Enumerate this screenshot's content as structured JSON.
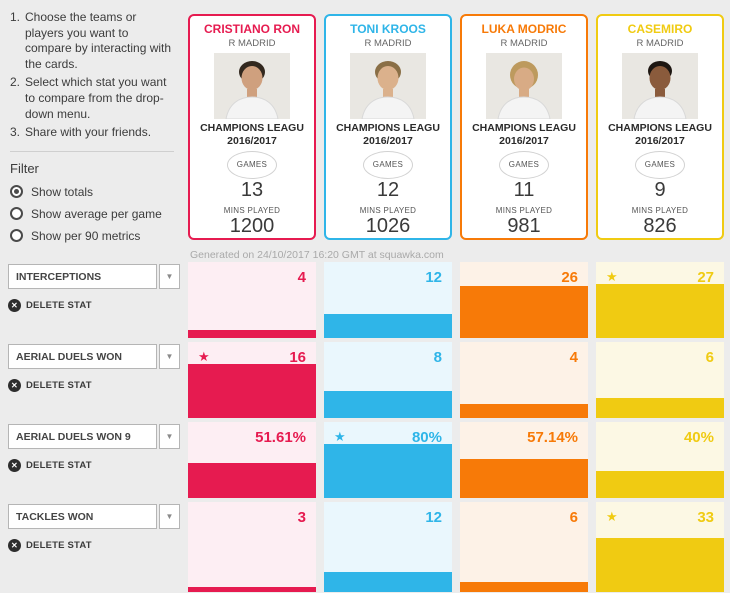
{
  "sidebar": {
    "instructions": [
      {
        "num": "1.",
        "text": "Choose the teams or players you want to compare by interacting with the cards."
      },
      {
        "num": "2.",
        "text": "Select which stat you want to compare from the drop-down menu."
      },
      {
        "num": "3.",
        "text": "Share with your friends."
      }
    ],
    "filter_title": "Filter",
    "filter_options": [
      {
        "label": "Show totals",
        "selected": true
      },
      {
        "label": "Show average per game",
        "selected": false
      },
      {
        "label": "Show per 90 metrics",
        "selected": false
      }
    ],
    "delete_label": "DELETE STAT"
  },
  "players": [
    {
      "name": "CRISTIANO RON",
      "team": "R MADRID",
      "competition": "CHAMPIONS LEAGU",
      "season": "2016/2017",
      "games_label": "GAMES",
      "games": "13",
      "mins_label": "MINS PLAYED",
      "mins": "1200",
      "color": "#e61b50",
      "tint": "#fdeef3",
      "photo": {
        "skin": "#cfa07e",
        "hair": "#32281e"
      }
    },
    {
      "name": "TONI KROOS",
      "team": "R MADRID",
      "competition": "CHAMPIONS LEAGU",
      "season": "2016/2017",
      "games_label": "GAMES",
      "games": "12",
      "mins_label": "MINS PLAYED",
      "mins": "1026",
      "color": "#2fb5e8",
      "tint": "#eaf7fd",
      "photo": {
        "skin": "#dbb18c",
        "hair": "#8a6f46"
      }
    },
    {
      "name": "LUKA MODRIC",
      "team": "R MADRID",
      "competition": "CHAMPIONS LEAGU",
      "season": "2016/2017",
      "games_label": "GAMES",
      "games": "11",
      "mins_label": "MINS PLAYED",
      "mins": "981",
      "color": "#f77a08",
      "tint": "#fdf2e7",
      "photo": {
        "skin": "#d8ab85",
        "hair": "#bd9a5e"
      }
    },
    {
      "name": "CASEMIRO",
      "team": "R MADRID",
      "competition": "CHAMPIONS LEAGU",
      "season": "2016/2017",
      "games_label": "GAMES",
      "games": "9",
      "mins_label": "MINS PLAYED",
      "mins": "826",
      "color": "#f0cb12",
      "tint": "#fcf8e4",
      "photo": {
        "skin": "#8a5b3c",
        "hair": "#1e1712"
      }
    }
  ],
  "generated_note": "Generated on 24/10/2017 16:20 GMT at squawka.com",
  "stats": [
    {
      "label": "INTERCEPTIONS",
      "values": [
        "4",
        "12",
        "26",
        "27"
      ],
      "numeric": [
        4,
        12,
        26,
        27
      ],
      "best": 3
    },
    {
      "label": "AERIAL DUELS WON",
      "values": [
        "16",
        "8",
        "4",
        "6"
      ],
      "numeric": [
        16,
        8,
        4,
        6
      ],
      "best": 0
    },
    {
      "label": "AERIAL DUELS WON 9",
      "values": [
        "51.61%",
        "80%",
        "57.14%",
        "40%"
      ],
      "numeric": [
        51.61,
        80,
        57.14,
        40
      ],
      "best": 1
    },
    {
      "label": "TACKLES WON",
      "values": [
        "3",
        "12",
        "6",
        "33"
      ],
      "numeric": [
        3,
        12,
        6,
        33
      ],
      "best": 3
    }
  ],
  "chart_data": {
    "type": "bar",
    "categories": [
      "CRISTIANO RON",
      "TONI KROOS",
      "LUKA MODRIC",
      "CASEMIRO"
    ],
    "series": [
      {
        "name": "INTERCEPTIONS",
        "values": [
          4,
          12,
          26,
          27
        ]
      },
      {
        "name": "AERIAL DUELS WON",
        "values": [
          16,
          8,
          4,
          6
        ]
      },
      {
        "name": "AERIAL DUELS WON %",
        "values": [
          51.61,
          80,
          57.14,
          40
        ]
      },
      {
        "name": "TACKLES WON",
        "values": [
          3,
          12,
          6,
          33
        ]
      }
    ]
  }
}
